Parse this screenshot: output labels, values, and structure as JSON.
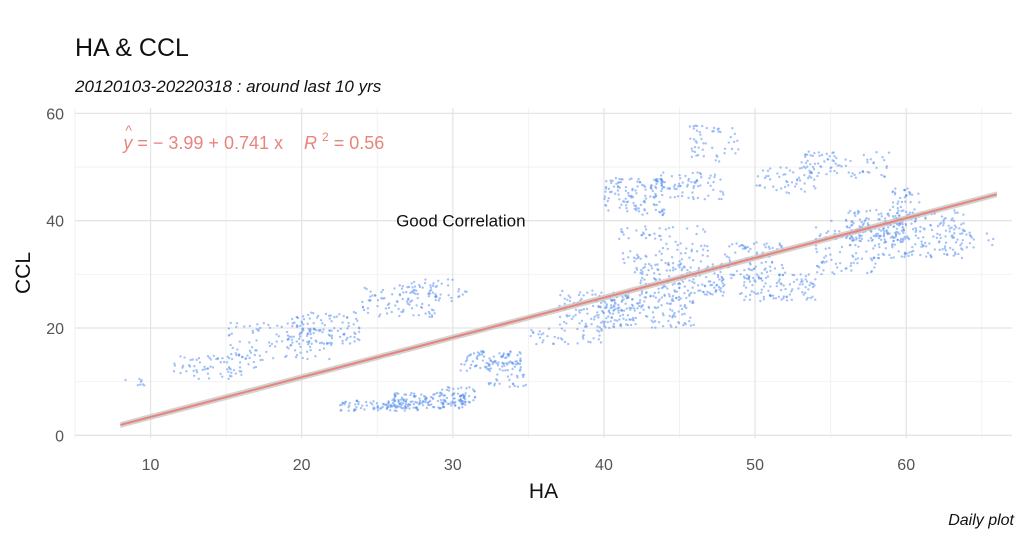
{
  "chart_data": {
    "type": "scatter",
    "title": "HA & CCL",
    "subtitle": "20120103-20220318 : around last 10 yrs",
    "caption": "Daily plot",
    "xlabel": "HA",
    "ylabel": "CCL",
    "xlim": [
      5,
      67
    ],
    "ylim": [
      -0.5,
      61
    ],
    "x_ticks": [
      10,
      20,
      30,
      40,
      50,
      60
    ],
    "y_ticks": [
      0,
      20,
      40,
      60
    ],
    "grid": true,
    "point_color": "#5b8ff0",
    "fit_color": "#e8847c",
    "band_color": "#c8c8c8",
    "regression": {
      "intercept": -3.99,
      "slope": 0.741,
      "r2": 0.56,
      "x_range": [
        8,
        66
      ]
    },
    "equation_label": {
      "y_hat": "y",
      "hat": "^",
      "body": " = − 3.99 + 0.741 x",
      "r": "R",
      "sup": "2",
      "r2_value": " = 0.56",
      "x": 8.2,
      "y": 54.5
    },
    "annotation": {
      "text": "Good Correlation",
      "x": 30,
      "y": 40
    },
    "clusters": [
      {
        "x": [
          8,
          10
        ],
        "y": [
          9,
          10.5
        ],
        "n": 8
      },
      {
        "x": [
          11.5,
          17
        ],
        "y": [
          10.5,
          15
        ],
        "n": 70
      },
      {
        "x": [
          15,
          22
        ],
        "y": [
          14,
          21
        ],
        "n": 110
      },
      {
        "x": [
          19,
          24
        ],
        "y": [
          17,
          23
        ],
        "n": 100
      },
      {
        "x": [
          24,
          29
        ],
        "y": [
          22,
          28
        ],
        "n": 90
      },
      {
        "x": [
          27,
          31
        ],
        "y": [
          25,
          29.5
        ],
        "n": 40
      },
      {
        "x": [
          22.5,
          28
        ],
        "y": [
          4.5,
          6.5
        ],
        "n": 90
      },
      {
        "x": [
          26,
          31
        ],
        "y": [
          5,
          8
        ],
        "n": 130
      },
      {
        "x": [
          29,
          31.5
        ],
        "y": [
          6,
          9
        ],
        "n": 40
      },
      {
        "x": [
          30.5,
          34.5
        ],
        "y": [
          12,
          16
        ],
        "n": 90
      },
      {
        "x": [
          32,
          35
        ],
        "y": [
          9,
          14
        ],
        "n": 40
      },
      {
        "x": [
          35,
          40
        ],
        "y": [
          17,
          20
        ],
        "n": 40
      },
      {
        "x": [
          37,
          42
        ],
        "y": [
          20,
          27
        ],
        "n": 110
      },
      {
        "x": [
          40,
          46
        ],
        "y": [
          20,
          26
        ],
        "n": 150
      },
      {
        "x": [
          42,
          48
        ],
        "y": [
          26,
          32
        ],
        "n": 160
      },
      {
        "x": [
          40,
          44
        ],
        "y": [
          41,
          48
        ],
        "n": 120
      },
      {
        "x": [
          43,
          48
        ],
        "y": [
          44,
          49
        ],
        "n": 80
      },
      {
        "x": [
          41,
          47
        ],
        "y": [
          32,
          39
        ],
        "n": 80
      },
      {
        "x": [
          45.5,
          49
        ],
        "y": [
          51,
          58
        ],
        "n": 50
      },
      {
        "x": [
          48,
          52
        ],
        "y": [
          29,
          36
        ],
        "n": 90
      },
      {
        "x": [
          49,
          54
        ],
        "y": [
          25,
          30
        ],
        "n": 100
      },
      {
        "x": [
          50,
          54
        ],
        "y": [
          45,
          50
        ],
        "n": 50
      },
      {
        "x": [
          53,
          59
        ],
        "y": [
          48,
          53
        ],
        "n": 80
      },
      {
        "x": [
          54,
          58
        ],
        "y": [
          30,
          40
        ],
        "n": 100
      },
      {
        "x": [
          56,
          60
        ],
        "y": [
          36,
          42
        ],
        "n": 120
      },
      {
        "x": [
          58,
          64
        ],
        "y": [
          33,
          42
        ],
        "n": 200
      },
      {
        "x": [
          59,
          61
        ],
        "y": [
          42,
          46
        ],
        "n": 30
      },
      {
        "x": [
          64,
          66
        ],
        "y": [
          34,
          38
        ],
        "n": 12
      }
    ]
  }
}
